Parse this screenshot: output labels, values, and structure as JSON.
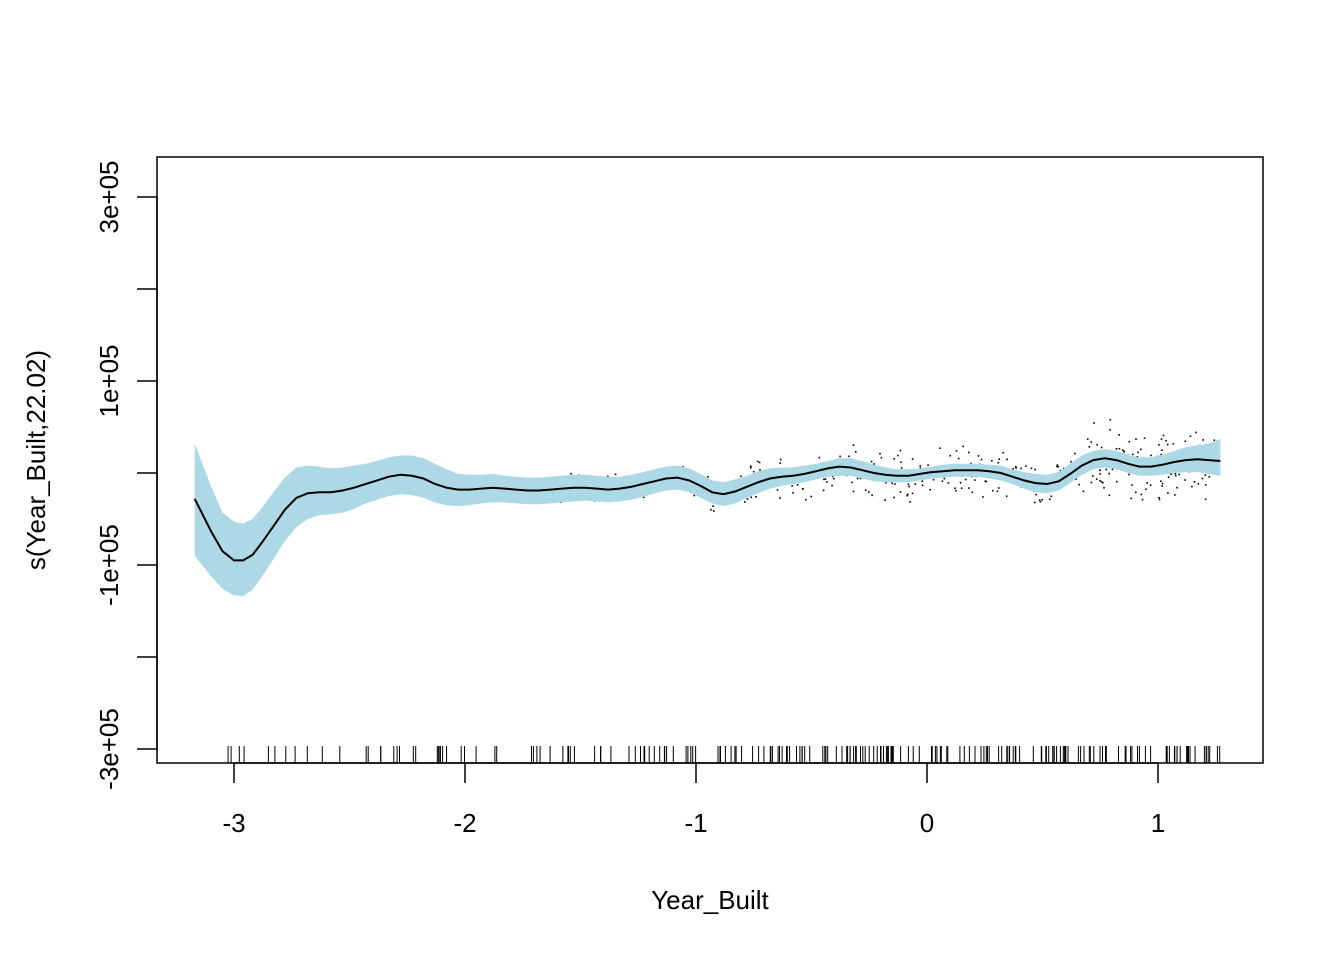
{
  "chart_data": {
    "type": "line",
    "title": "",
    "xlabel": "Year_Built",
    "ylabel": "s(Year_Built,22.02)",
    "xlim": [
      -3.35,
      1.45
    ],
    "ylim": [
      -315000,
      340000
    ],
    "x_ticks": [
      -3,
      -2,
      -1,
      0,
      1
    ],
    "x_tick_labels": [
      "-3",
      "-2",
      "-1",
      "0",
      "1"
    ],
    "y_ticks": [
      -300000,
      -200000,
      -100000,
      0,
      100000,
      200000,
      300000
    ],
    "y_tick_labels": [
      "-3e+05",
      "",
      "-1e+05",
      "",
      "1e+05",
      "",
      "3e+05"
    ],
    "grid": false,
    "legend": "none",
    "colors": {
      "band": "#add8e6",
      "line": "#000000",
      "points": "#000000"
    },
    "series": [
      {
        "x": [
          -3.17,
          -3.1,
          -3.05,
          -3.0,
          -2.96,
          -2.92,
          -2.88,
          -2.83,
          -2.78,
          -2.73,
          -2.68,
          -2.63,
          -2.58,
          -2.53,
          -2.48,
          -2.43,
          -2.38,
          -2.33,
          -2.28,
          -2.23,
          -2.18,
          -2.13,
          -2.08,
          -2.03,
          -1.98,
          -1.93,
          -1.88,
          -1.83,
          -1.78,
          -1.73,
          -1.68,
          -1.63,
          -1.58,
          -1.53,
          -1.48,
          -1.43,
          -1.38,
          -1.33,
          -1.28,
          -1.23,
          -1.18,
          -1.13,
          -1.08,
          -1.03,
          -0.98,
          -0.93,
          -0.88,
          -0.83,
          -0.78,
          -0.73,
          -0.68,
          -0.63,
          -0.58,
          -0.53,
          -0.48,
          -0.43,
          -0.38,
          -0.33,
          -0.28,
          -0.23,
          -0.18,
          -0.13,
          -0.08,
          -0.03,
          0.02,
          0.07,
          0.12,
          0.17,
          0.22,
          0.27,
          0.32,
          0.37,
          0.42,
          0.47,
          0.52,
          0.57,
          0.62,
          0.67,
          0.72,
          0.77,
          0.82,
          0.87,
          0.92,
          0.97,
          1.02,
          1.07,
          1.12,
          1.17,
          1.22,
          1.27
        ],
        "values": [
          -28000,
          -63000,
          -85000,
          -95000,
          -95000,
          -89000,
          -76000,
          -58000,
          -40000,
          -27000,
          -22000,
          -21000,
          -21000,
          -19000,
          -16000,
          -12000,
          -8000,
          -4000,
          -2000,
          -3000,
          -6000,
          -12000,
          -16000,
          -18000,
          -18000,
          -17000,
          -16000,
          -17000,
          -18000,
          -19000,
          -19000,
          -18000,
          -17000,
          -16000,
          -16000,
          -17000,
          -18000,
          -17000,
          -15000,
          -12000,
          -9000,
          -6000,
          -5000,
          -8000,
          -14000,
          -21000,
          -23000,
          -20000,
          -15000,
          -10000,
          -6000,
          -4000,
          -3000,
          -1000,
          2000,
          5000,
          7000,
          6000,
          3000,
          0,
          -2000,
          -3000,
          -3000,
          -1000,
          1000,
          2000,
          3000,
          3000,
          3000,
          2000,
          0,
          -4000,
          -8000,
          -11000,
          -12000,
          -9000,
          -1000,
          8000,
          14000,
          16000,
          14000,
          10000,
          7000,
          7000,
          9000,
          12000,
          14000,
          15000,
          14000,
          13000
        ],
        "lower": [
          -90000,
          -112000,
          -126000,
          -133000,
          -134000,
          -127000,
          -113000,
          -94000,
          -74000,
          -59000,
          -50000,
          -46000,
          -45000,
          -43000,
          -39000,
          -33000,
          -29000,
          -25000,
          -23000,
          -24000,
          -27000,
          -32000,
          -35000,
          -36000,
          -35000,
          -33000,
          -32000,
          -32000,
          -33000,
          -34000,
          -34000,
          -33000,
          -32000,
          -31000,
          -30000,
          -31000,
          -32000,
          -31000,
          -29000,
          -26000,
          -22000,
          -19000,
          -18000,
          -21000,
          -27000,
          -33000,
          -36000,
          -33000,
          -27000,
          -22000,
          -17000,
          -14000,
          -12000,
          -10000,
          -7000,
          -4000,
          -3000,
          -3000,
          -6000,
          -9000,
          -10000,
          -10000,
          -10000,
          -8000,
          -6000,
          -5000,
          -4000,
          -4000,
          -4000,
          -6000,
          -8000,
          -12000,
          -17000,
          -21000,
          -22000,
          -19000,
          -11000,
          -2000,
          4000,
          6000,
          4000,
          0,
          -3000,
          -3000,
          -2000,
          0,
          1000,
          1000,
          -1000,
          -3000
        ],
        "upper": [
          32000,
          -14000,
          -43000,
          -53000,
          -55000,
          -50000,
          -38000,
          -21000,
          -5000,
          6000,
          8000,
          7000,
          5000,
          6000,
          8000,
          10000,
          13000,
          17000,
          19000,
          19000,
          16000,
          10000,
          4000,
          -1000,
          -2000,
          -2000,
          -1000,
          -3000,
          -4000,
          -5000,
          -5000,
          -4000,
          -3000,
          -2000,
          -2000,
          -3000,
          -4000,
          -4000,
          -2000,
          1000,
          4000,
          7000,
          8000,
          5000,
          -1000,
          -8000,
          -10000,
          -7000,
          -3000,
          2000,
          5000,
          6000,
          6000,
          8000,
          10000,
          13000,
          16000,
          16000,
          13000,
          9000,
          6000,
          4000,
          4000,
          5000,
          7000,
          9000,
          10000,
          10000,
          10000,
          9000,
          8000,
          4000,
          1000,
          -1000,
          -2000,
          1000,
          10000,
          19000,
          24000,
          26000,
          24000,
          20000,
          17000,
          17000,
          20000,
          24000,
          28000,
          30000,
          32000,
          37000
        ]
      }
    ]
  }
}
